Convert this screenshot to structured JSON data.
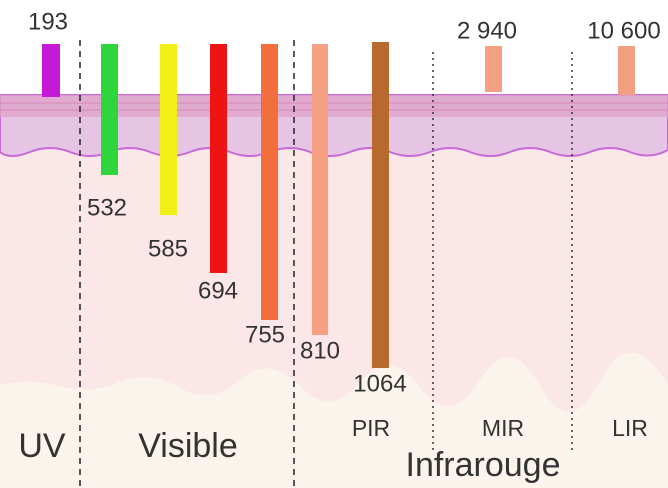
{
  "wavelengths": [
    "193",
    "532",
    "585",
    "694",
    "755",
    "810",
    "1064",
    "2 940",
    "10 600"
  ],
  "regions": {
    "uv": "UV",
    "visible": "Visible",
    "pir": "PIR",
    "mir": "MIR",
    "lir": "LIR",
    "infrared": "Infrarouge"
  }
}
